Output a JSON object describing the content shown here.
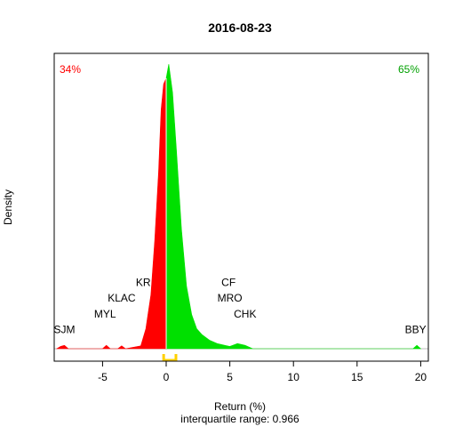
{
  "chart_data": {
    "type": "area",
    "title": "2016-08-23",
    "xlabel": "Return (%)",
    "subtitle": "interquartile range: 0.966",
    "ylabel": "Density",
    "xlim": [
      -8.8,
      20.6
    ],
    "ylim": [
      0,
      1.0
    ],
    "xticks": [
      -5,
      0,
      5,
      10,
      15,
      20
    ],
    "percent_negative": "34%",
    "percent_positive": "65%",
    "colors": {
      "negative": "#ff0000",
      "positive": "#00e000",
      "iqr": "#ffd000",
      "baseline": "#bebebe"
    },
    "series": [
      {
        "name": "negative",
        "x": [
          -8.6,
          -8.3,
          -8.0,
          -7.7,
          -5.0,
          -4.7,
          -4.4,
          -3.8,
          -3.5,
          -3.2,
          -2.0,
          -1.6,
          -1.2,
          -0.9,
          -0.6,
          -0.4,
          -0.2,
          0
        ],
        "y": [
          0,
          0.008,
          0.012,
          0,
          0,
          0.012,
          0,
          0,
          0.01,
          0,
          0.01,
          0.07,
          0.19,
          0.38,
          0.62,
          0.84,
          0.93,
          0.95
        ]
      },
      {
        "name": "positive",
        "x": [
          0,
          0.2,
          0.5,
          0.8,
          1.2,
          1.6,
          2.0,
          2.4,
          2.8,
          3.4,
          4.0,
          4.6,
          5.0,
          5.6,
          6.2,
          6.8,
          19.4,
          19.7,
          20.0
        ],
        "y": [
          0.95,
          1.0,
          0.9,
          0.7,
          0.42,
          0.22,
          0.12,
          0.07,
          0.05,
          0.03,
          0.018,
          0.012,
          0.008,
          0.018,
          0.012,
          0,
          0,
          0.012,
          0
        ]
      }
    ],
    "iqr": [
      -0.2,
      0.766
    ],
    "annotations": [
      {
        "text": "SJM",
        "x": -8.0,
        "y": 0.055
      },
      {
        "text": "MYL",
        "x": -4.8,
        "y": 0.11
      },
      {
        "text": "KLAC",
        "x": -3.5,
        "y": 0.165
      },
      {
        "text": "KR",
        "x": -1.8,
        "y": 0.22
      },
      {
        "text": "CF",
        "x": 4.9,
        "y": 0.22
      },
      {
        "text": "MRO",
        "x": 5.0,
        "y": 0.165
      },
      {
        "text": "CHK",
        "x": 6.2,
        "y": 0.11
      },
      {
        "text": "BBY",
        "x": 19.6,
        "y": 0.055
      }
    ]
  }
}
